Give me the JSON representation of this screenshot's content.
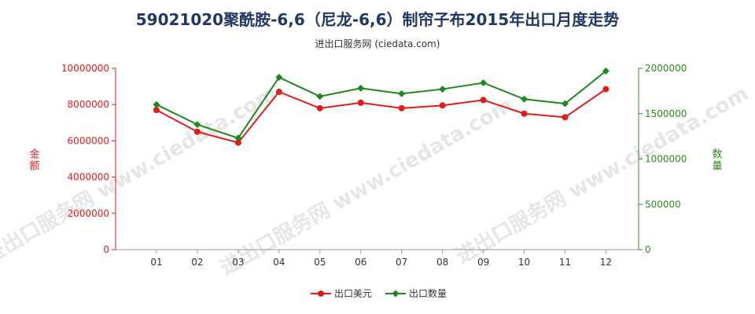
{
  "page": {
    "title": "59021020聚酰胺-6,6（尼龙-6,6）制帘子布2015年出口月度走势",
    "subtitle": "进出口服务网 (ciedata.com)",
    "watermark": "进出口服务网 www.ciedata.com"
  },
  "chart_data": {
    "type": "line",
    "title": "59021020聚酰胺-6,6（尼龙-6,6）制帘子布2015年出口月度走势",
    "subtitle": "进出口服务网 (ciedata.com)",
    "categories": [
      "01",
      "02",
      "03",
      "04",
      "05",
      "06",
      "07",
      "08",
      "09",
      "10",
      "11",
      "12"
    ],
    "left_axis": {
      "label": "金额",
      "range": [
        0,
        10000000
      ],
      "ticks": [
        "0",
        "2000000",
        "4000000",
        "6000000",
        "8000000",
        "10000000"
      ],
      "color": "#e31a1c"
    },
    "right_axis": {
      "label": "数量",
      "range": [
        0,
        2000000
      ],
      "ticks": [
        "0",
        "500000",
        "1000000",
        "1500000",
        "2000000"
      ],
      "color": "#2b8a1f"
    },
    "series": [
      {
        "name": "出口美元",
        "axis": "left",
        "color": "#e31a1c",
        "marker": "circle",
        "values": [
          7700000,
          6500000,
          5900000,
          8700000,
          7800000,
          8100000,
          7800000,
          7950000,
          8250000,
          7500000,
          7300000,
          8850000
        ]
      },
      {
        "name": "出口数量",
        "axis": "right",
        "color": "#1a8a1a",
        "marker": "diamond",
        "values": [
          1600000,
          1380000,
          1230000,
          1900000,
          1690000,
          1780000,
          1720000,
          1770000,
          1840000,
          1660000,
          1610000,
          1970000
        ]
      }
    ],
    "grid": false,
    "legend_position": "bottom-center"
  }
}
